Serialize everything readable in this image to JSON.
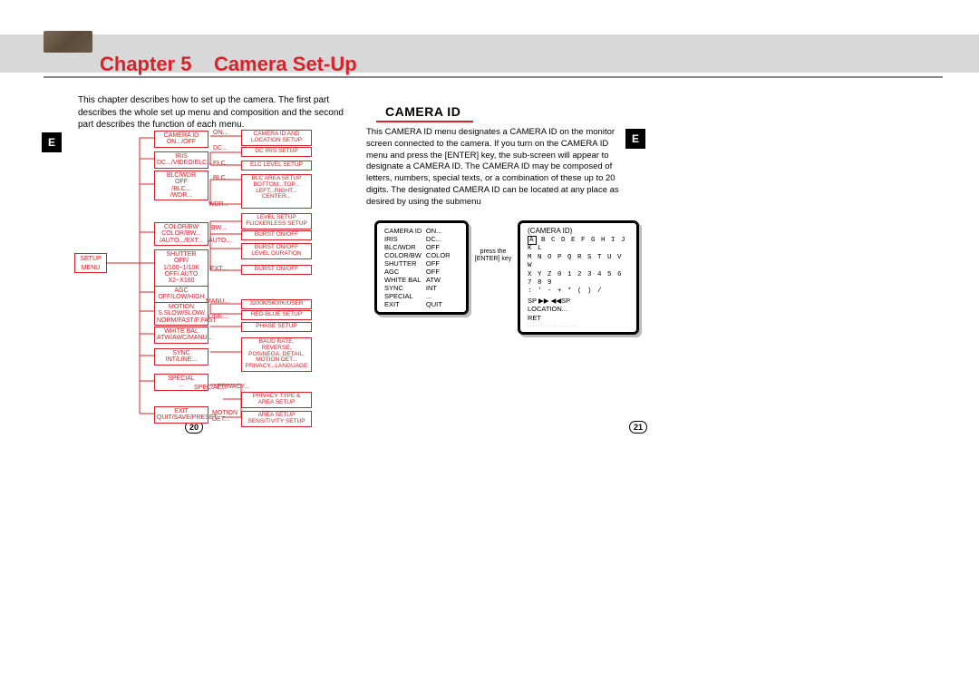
{
  "header": {
    "chapter": "Chapter 5",
    "title": "Camera Set-Up"
  },
  "intro": "This chapter describes how to set up the camera. The first part describes the whole set up menu and composition and the second part describes the function of each menu.",
  "side_tab": "E",
  "section_heading": "CAMERA ID",
  "right_body": "This CAMERA ID menu designates a CAMERA ID on the monitor screen connected to the camera. If you turn on the CAMERA ID menu and press the [ENTER] key, the sub-screen will appear to designate a CAMERA ID. The CAMERA ID may be composed of letters, numbers,  special texts, or a combination of these up to 20 digits. The designated CAMERA ID can be located at any place as desired by using the submenu",
  "press": "press the\n[ENTER] key",
  "panel1_rows": [
    {
      "k": "CAMERA ID",
      "v": "ON..."
    },
    {
      "k": "IRIS",
      "v": "DC..."
    },
    {
      "k": "BLC/WDR",
      "v": "OFF"
    },
    {
      "k": "COLOR/BW",
      "v": "COLOR"
    },
    {
      "k": "SHUTTER",
      "v": "OFF"
    },
    {
      "k": "AGC",
      "v": "OFF"
    },
    {
      "k": "WHITE BAL",
      "v": "ATW"
    },
    {
      "k": "SYNC",
      "v": "INT"
    },
    {
      "k": "SPECIAL",
      "v": "..."
    },
    {
      "k": "EXIT",
      "v": "QUIT"
    }
  ],
  "panel2_title": "(CAMERA ID)",
  "panel2_grid": [
    "A B C D E F G H I J K L",
    "M N O P Q R S T U V W",
    "X  Y Z 0 1 2 3 4 5 6 7 8 9",
    " :  '  -  +  *  (   )  /"
  ],
  "panel2_lines": [
    "SP ▶▶ ◀◀SP",
    "LOCATION...",
    "RET"
  ],
  "page_left": "20",
  "page_right": "21",
  "tree": {
    "setup": "SETUP\nMENU",
    "col_mid": [
      "CAMERA ID\nON.../OFF",
      "IRIS\nDC.../VIDEO/ELC...",
      "BLC/WDR\nOFF\n/BLC...\n/WDR...",
      "COLOR/BW\nCOLOR/BW...\n/AUTO.../EXT...",
      "SHUTTER\nOFF/ 1/100~1/10K\nOFF/ AUTO\nX2~X160",
      "AGC\nOFF/LOW/HIGH",
      "MOTION\nS.SLOW/SLOW/\nNORM/FAST/F.FAST",
      "WHITE BAL\nATW/AWC/MANU...",
      "SYNC\nINT/LINE...",
      "SPECIAL\n...",
      "EXIT\nQUIT/SAVE/PRESET"
    ],
    "col_right": [
      "CAMERA ID AND\nLOCATION SETUP",
      "DC IRIS SETUP",
      "ELC LEVEL  SETUP",
      "BLC AREA SETUP\nBOTTOM...TOP...\nLEFT...RIGHT...\nCENTER...",
      "LEVEL  SETUP\nFLICKERLESS SETUP",
      "BURST ON/OFF",
      "BURST ON/OFF\nLEVEL DURATION",
      "BURST ON/OFF",
      "3200K/5600K/USER",
      "RED-BLUE SETUP",
      "PHASE  SETUP",
      "BAUD RATE, REVERSE,\nPOS/NEGA, DETAIL,\nMOTION DET...\nPRIVACY...LANGUAGE",
      "PRIVACY TYPE &\nAREA  SETUP",
      "AREA  SETUP\nSENSITIVITY SETUP"
    ],
    "edge_labels": {
      "on": "ON...",
      "dc": "DC...",
      "elc": "ELC...",
      "blc": "BLC...",
      "wdr": "WDR...",
      "bw": "BW...",
      "auto": "AUTO...",
      "ext": "EXT...",
      "manu": "MANU...",
      "line": "LINE...",
      "special": "SPECIAL...",
      "privacy": "PRIVACY...",
      "motion": "MOTION\nDET..."
    }
  },
  "colors": {
    "accent": "#d8222a",
    "header": "#d8d8d8"
  }
}
